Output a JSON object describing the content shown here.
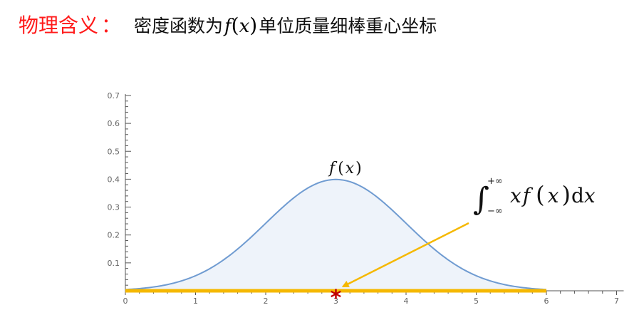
{
  "heading": {
    "label": "物理含义",
    "colon": "：",
    "text_before": "密度函数为",
    "fn_name": "f",
    "fn_open": "(",
    "fn_var": "x",
    "fn_close": ")",
    "text_after": "单位质量细棒重心坐标"
  },
  "curve_label": {
    "fn": "f",
    "open": "(",
    "var": "x",
    "close": ")"
  },
  "integral": {
    "symbol": "∫",
    "upper": "+∞",
    "lower": "−∞",
    "x1": "x",
    "f": "f",
    "open": "(",
    "var": "x",
    "close": ")",
    "d": "d",
    "x2": "x"
  },
  "marker": {
    "symbol": "*",
    "x": 3,
    "color": "#c00000"
  },
  "colors": {
    "heading": "#ff1a1a",
    "curve": "#6f9bd1",
    "fill": "#eef3fa",
    "rod": "#f5b800",
    "arrow": "#f5b800"
  },
  "chart_data": {
    "type": "area",
    "mean": 3,
    "sd": 1,
    "x_ticks": [
      "0",
      "1",
      "2",
      "3",
      "4",
      "5",
      "6",
      "7"
    ],
    "y_ticks": [
      "0.1",
      "0.2",
      "0.3",
      "0.4",
      "0.5",
      "0.6",
      "0.7"
    ],
    "xlim": [
      0,
      7
    ],
    "ylim": [
      0,
      0.7
    ],
    "shaded_range": [
      0,
      6
    ],
    "rod_range": [
      0,
      6
    ]
  }
}
